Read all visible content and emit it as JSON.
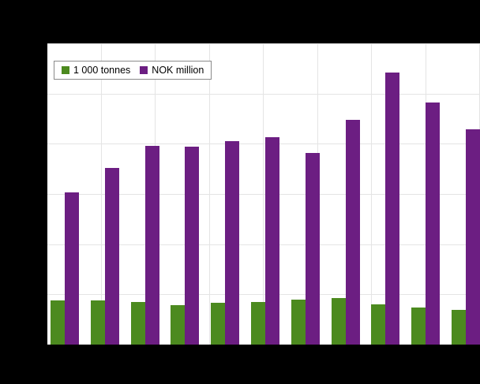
{
  "chart_data": {
    "type": "bar",
    "title": "",
    "xlabel": "",
    "ylabel": "",
    "categories": [
      "",
      "",
      "",
      "",
      "",
      "",
      "",
      "",
      "",
      "",
      ""
    ],
    "series": [
      {
        "name": "1 000 tonnes",
        "color": "#4c8a1f",
        "values": [
          0.88,
          0.88,
          0.85,
          0.79,
          0.83,
          0.85,
          0.9,
          0.93,
          0.8,
          0.74,
          0.69
        ]
      },
      {
        "name": "NOK million",
        "color": "#6c1e82",
        "values": [
          3.03,
          3.52,
          3.96,
          3.94,
          4.05,
          4.13,
          3.82,
          4.48,
          5.42,
          4.82,
          4.29
        ]
      }
    ],
    "ylim": [
      0,
      6
    ],
    "grid": true,
    "gridline_intervals_y": 6,
    "gridline_intervals_x": 8,
    "legend_position": "top-left",
    "axis_tick_labels_visible": false
  },
  "colors": {
    "background": "#000000",
    "plot_background": "#ffffff",
    "gridline": "#e4e4e4",
    "legend_border": "#8a8a8a"
  }
}
